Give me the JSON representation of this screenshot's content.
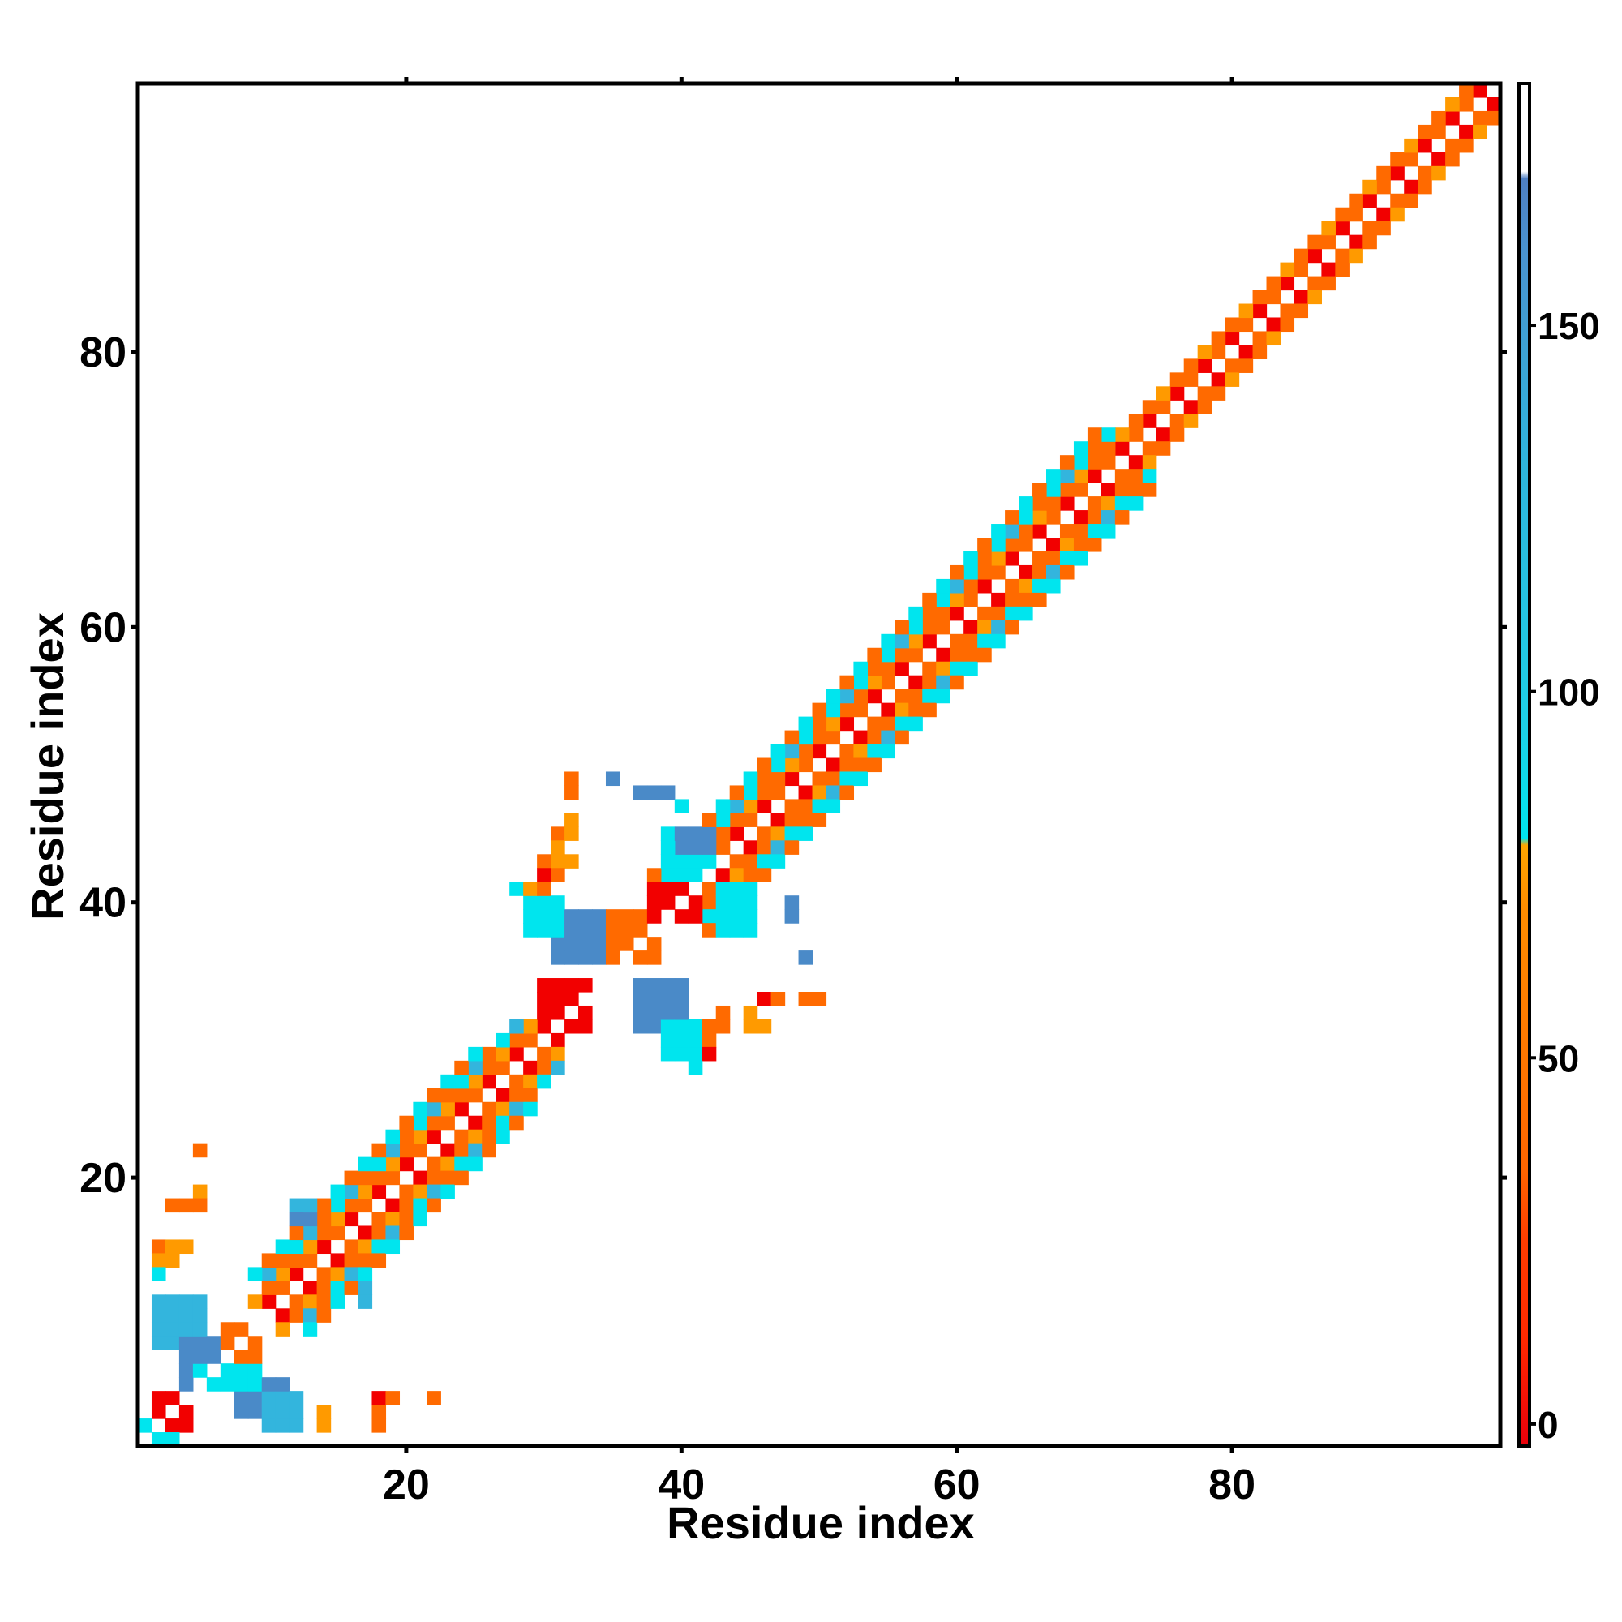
{
  "chart_data": {
    "type": "heatmap",
    "title": "",
    "xlabel": "Residue index",
    "ylabel": "Residue index",
    "xlim": [
      1,
      99
    ],
    "ylim": [
      1,
      99
    ],
    "x_ticks": [
      20,
      40,
      60,
      80
    ],
    "y_ticks": [
      20,
      40,
      60,
      80
    ],
    "grid": false,
    "colorbar": {
      "range": [
        -3,
        183
      ],
      "ticks": [
        0,
        50,
        100,
        150
      ],
      "stops": [
        {
          "value": -3,
          "color": "#e8000b"
        },
        {
          "value": 12,
          "color": "#ff2a00"
        },
        {
          "value": 25,
          "color": "#ff3d00"
        },
        {
          "value": 35,
          "color": "#ff6600"
        },
        {
          "value": 70,
          "color": "#ff8c00"
        },
        {
          "value": 79,
          "color": "#ffa500"
        },
        {
          "value": 80,
          "color": "#00e5ee"
        },
        {
          "value": 95,
          "color": "#1ed0e6"
        },
        {
          "value": 130,
          "color": "#2fb5dc"
        },
        {
          "value": 160,
          "color": "#4a93cf"
        },
        {
          "value": 170,
          "color": "#4f7fc2"
        },
        {
          "value": 171,
          "color": "#ffffff"
        },
        {
          "value": 183,
          "color": "#ffffff"
        }
      ]
    },
    "cell_colors": {
      "red": "#f20000",
      "orange": "#ff6a00",
      "amber": "#ff9a00",
      "cyan": "#00e5ee",
      "sky": "#33b5dd",
      "steel": "#4a8ac8"
    },
    "value_by_color": {
      "red": 5,
      "orange": 40,
      "amber": 72,
      "cyan": 95,
      "sky": 130,
      "steel": 165
    },
    "diagonal_bands": [
      {
        "start": 42,
        "end": 99,
        "offset": 1,
        "pattern": [
          "orange",
          "red"
        ]
      },
      {
        "start": 42,
        "end": 99,
        "offset": 2,
        "pattern": [
          "orange",
          "orange",
          "amber"
        ]
      },
      {
        "start": 42,
        "end": 74,
        "offset": 3,
        "pattern": [
          "cyan",
          "orange",
          "cyan",
          "sky"
        ]
      },
      {
        "start": 42,
        "end": 74,
        "offset": 4,
        "pattern": [
          "orange",
          "cyan"
        ]
      },
      {
        "start": 11,
        "end": 31,
        "offset": 1,
        "pattern": [
          "orange",
          "red"
        ]
      },
      {
        "start": 11,
        "end": 31,
        "offset": 2,
        "pattern": [
          "orange",
          "amber"
        ]
      },
      {
        "start": 13,
        "end": 31,
        "offset": 3,
        "pattern": [
          "cyan",
          "sky",
          "orange"
        ]
      },
      {
        "start": 13,
        "end": 29,
        "offset": 4,
        "pattern": [
          "orange",
          "cyan"
        ]
      }
    ],
    "blocks": [
      {
        "x": [
          2,
          5
        ],
        "y": [
          8,
          11
        ],
        "color": "sky"
      },
      {
        "x": [
          4,
          6
        ],
        "y": [
          5,
          8
        ],
        "color": "steel"
      },
      {
        "x": [
          8,
          11
        ],
        "y": [
          3,
          5
        ],
        "color": "steel"
      },
      {
        "x": [
          10,
          12
        ],
        "y": [
          2,
          4
        ],
        "color": "sky"
      },
      {
        "x": [
          7,
          9
        ],
        "y": [
          5,
          6
        ],
        "color": "cyan"
      },
      {
        "x": [
          5,
          7
        ],
        "y": [
          5,
          6
        ],
        "color": "cyan"
      },
      {
        "x": [
          2,
          4
        ],
        "y": [
          2,
          4
        ],
        "color": "red"
      },
      {
        "x": [
          7,
          9
        ],
        "y": [
          7,
          9
        ],
        "color": "orange"
      },
      {
        "x": [
          31,
          34
        ],
        "y": [
          36,
          39
        ],
        "color": "steel"
      },
      {
        "x": [
          37,
          40
        ],
        "y": [
          31,
          34
        ],
        "color": "steel"
      },
      {
        "x": [
          29,
          31
        ],
        "y": [
          38,
          40
        ],
        "color": "cyan"
      },
      {
        "x": [
          39,
          41
        ],
        "y": [
          29,
          31
        ],
        "color": "cyan"
      },
      {
        "x": [
          35,
          38
        ],
        "y": [
          36,
          39
        ],
        "color": "orange"
      },
      {
        "x": [
          30,
          33
        ],
        "y": [
          31,
          34
        ],
        "color": "red"
      },
      {
        "x": [
          38,
          41
        ],
        "y": [
          39,
          41
        ],
        "color": "red"
      },
      {
        "x": [
          39,
          42
        ],
        "y": [
          42,
          45
        ],
        "color": "cyan"
      },
      {
        "x": [
          40,
          42
        ],
        "y": [
          44,
          45
        ],
        "color": "steel"
      },
      {
        "x": [
          43,
          45
        ],
        "y": [
          38,
          41
        ],
        "color": "cyan"
      }
    ],
    "points": [
      {
        "x": 5,
        "y": 22,
        "color": "orange"
      },
      {
        "x": 5,
        "y": 19,
        "color": "amber"
      },
      {
        "x": 3,
        "y": 18,
        "color": "orange"
      },
      {
        "x": 4,
        "y": 18,
        "color": "orange"
      },
      {
        "x": 5,
        "y": 18,
        "color": "orange"
      },
      {
        "x": 2,
        "y": 15,
        "color": "orange"
      },
      {
        "x": 3,
        "y": 15,
        "color": "amber"
      },
      {
        "x": 4,
        "y": 15,
        "color": "amber"
      },
      {
        "x": 2,
        "y": 14,
        "color": "amber"
      },
      {
        "x": 3,
        "y": 14,
        "color": "amber"
      },
      {
        "x": 2,
        "y": 13,
        "color": "cyan"
      },
      {
        "x": 14,
        "y": 3,
        "color": "amber"
      },
      {
        "x": 14,
        "y": 2,
        "color": "amber"
      },
      {
        "x": 18,
        "y": 4,
        "color": "red"
      },
      {
        "x": 18,
        "y": 3,
        "color": "orange"
      },
      {
        "x": 18,
        "y": 2,
        "color": "orange"
      },
      {
        "x": 19,
        "y": 4,
        "color": "orange"
      },
      {
        "x": 22,
        "y": 4,
        "color": "orange"
      },
      {
        "x": 2,
        "y": 1,
        "color": "cyan"
      },
      {
        "x": 3,
        "y": 1,
        "color": "cyan"
      },
      {
        "x": 1,
        "y": 2,
        "color": "cyan"
      },
      {
        "x": 12,
        "y": 18,
        "color": "sky"
      },
      {
        "x": 13,
        "y": 18,
        "color": "sky"
      },
      {
        "x": 12,
        "y": 17,
        "color": "steel"
      },
      {
        "x": 13,
        "y": 17,
        "color": "steel"
      },
      {
        "x": 17,
        "y": 12,
        "color": "sky"
      },
      {
        "x": 17,
        "y": 11,
        "color": "sky"
      },
      {
        "x": 32,
        "y": 49,
        "color": "orange"
      },
      {
        "x": 32,
        "y": 48,
        "color": "orange"
      },
      {
        "x": 35,
        "y": 49,
        "color": "steel"
      },
      {
        "x": 37,
        "y": 48,
        "color": "steel"
      },
      {
        "x": 38,
        "y": 48,
        "color": "steel"
      },
      {
        "x": 39,
        "y": 48,
        "color": "steel"
      },
      {
        "x": 32,
        "y": 46,
        "color": "amber"
      },
      {
        "x": 31,
        "y": 45,
        "color": "orange"
      },
      {
        "x": 31,
        "y": 44,
        "color": "amber"
      },
      {
        "x": 32,
        "y": 45,
        "color": "amber"
      },
      {
        "x": 30,
        "y": 43,
        "color": "orange"
      },
      {
        "x": 31,
        "y": 43,
        "color": "amber"
      },
      {
        "x": 32,
        "y": 43,
        "color": "amber"
      },
      {
        "x": 30,
        "y": 42,
        "color": "red"
      },
      {
        "x": 31,
        "y": 42,
        "color": "orange"
      },
      {
        "x": 28,
        "y": 41,
        "color": "cyan"
      },
      {
        "x": 29,
        "y": 41,
        "color": "amber"
      },
      {
        "x": 30,
        "y": 41,
        "color": "orange"
      },
      {
        "x": 48,
        "y": 40,
        "color": "steel"
      },
      {
        "x": 48,
        "y": 39,
        "color": "steel"
      },
      {
        "x": 49,
        "y": 36,
        "color": "steel"
      },
      {
        "x": 44,
        "y": 38,
        "color": "cyan"
      },
      {
        "x": 46,
        "y": 33,
        "color": "red"
      },
      {
        "x": 47,
        "y": 33,
        "color": "orange"
      },
      {
        "x": 49,
        "y": 33,
        "color": "orange"
      },
      {
        "x": 50,
        "y": 33,
        "color": "orange"
      },
      {
        "x": 45,
        "y": 32,
        "color": "amber"
      },
      {
        "x": 45,
        "y": 31,
        "color": "amber"
      },
      {
        "x": 46,
        "y": 31,
        "color": "amber"
      },
      {
        "x": 43,
        "y": 32,
        "color": "orange"
      },
      {
        "x": 42,
        "y": 31,
        "color": "orange"
      },
      {
        "x": 43,
        "y": 31,
        "color": "orange"
      },
      {
        "x": 42,
        "y": 30,
        "color": "orange"
      },
      {
        "x": 42,
        "y": 29,
        "color": "red"
      },
      {
        "x": 41,
        "y": 28,
        "color": "cyan"
      },
      {
        "x": 41,
        "y": 29,
        "color": "cyan"
      },
      {
        "x": 45,
        "y": 39,
        "color": "cyan"
      },
      {
        "x": 40,
        "y": 47,
        "color": "cyan"
      }
    ]
  }
}
